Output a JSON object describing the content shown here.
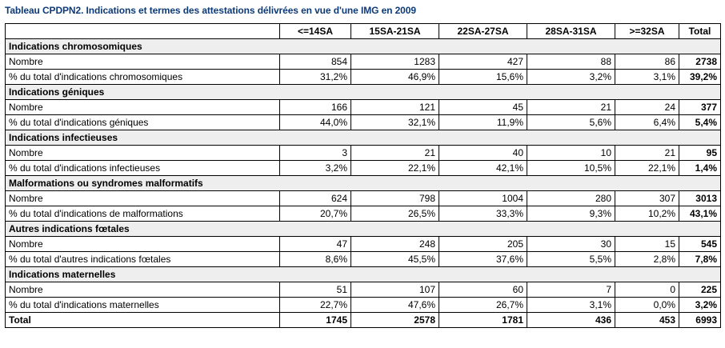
{
  "caption": "Tableau CPDPN2. Indications et termes des attestations délivrées en vue d'une IMG en 2009",
  "columns": [
    "",
    "<=14SA",
    "15SA-21SA",
    "22SA-27SA",
    "28SA-31SA",
    ">=32SA",
    "Total"
  ],
  "sections": [
    {
      "title": "Indications chromosomiques",
      "rows": [
        {
          "label": "Nombre",
          "values": [
            "854",
            "1283",
            "427",
            "88",
            "86"
          ],
          "total": "2738"
        },
        {
          "label": "% du total d'indications chromosomiques",
          "values": [
            "31,2%",
            "46,9%",
            "15,6%",
            "3,2%",
            "3,1%"
          ],
          "total": "39,2%"
        }
      ]
    },
    {
      "title": "Indications géniques",
      "rows": [
        {
          "label": "Nombre",
          "values": [
            "166",
            "121",
            "45",
            "21",
            "24"
          ],
          "total": "377"
        },
        {
          "label": "% du total d'indications géniques",
          "values": [
            "44,0%",
            "32,1%",
            "11,9%",
            "5,6%",
            "6,4%"
          ],
          "total": "5,4%"
        }
      ]
    },
    {
      "title": "Indications infectieuses",
      "rows": [
        {
          "label": "Nombre",
          "values": [
            "3",
            "21",
            "40",
            "10",
            "21"
          ],
          "total": "95"
        },
        {
          "label": "% du total d'indications infectieuses",
          "values": [
            "3,2%",
            "22,1%",
            "42,1%",
            "10,5%",
            "22,1%"
          ],
          "total": "1,4%"
        }
      ]
    },
    {
      "title": "Malformations ou syndromes malformatifs",
      "rows": [
        {
          "label": "Nombre",
          "values": [
            "624",
            "798",
            "1004",
            "280",
            "307"
          ],
          "total": "3013"
        },
        {
          "label": "% du total d'indications de malformations",
          "values": [
            "20,7%",
            "26,5%",
            "33,3%",
            "9,3%",
            "10,2%"
          ],
          "total": "43,1%"
        }
      ]
    },
    {
      "title": "Autres indications fœtales",
      "rows": [
        {
          "label": "Nombre",
          "values": [
            "47",
            "248",
            "205",
            "30",
            "15"
          ],
          "total": "545"
        },
        {
          "label": "% du total d'autres indications fœtales",
          "values": [
            "8,6%",
            "45,5%",
            "37,6%",
            "5,5%",
            "2,8%"
          ],
          "total": "7,8%"
        }
      ]
    },
    {
      "title": "Indications maternelles",
      "rows": [
        {
          "label": "Nombre",
          "values": [
            "51",
            "107",
            "60",
            "7",
            "0"
          ],
          "total": "225"
        },
        {
          "label": "% du total d'indications maternelles",
          "values": [
            "22,7%",
            "47,6%",
            "26,7%",
            "3,1%",
            "0,0%"
          ],
          "total": "3,2%"
        }
      ]
    }
  ],
  "total_row": {
    "label": "Total",
    "values": [
      "1745",
      "2578",
      "1781",
      "436",
      "453"
    ],
    "total": "6993"
  }
}
